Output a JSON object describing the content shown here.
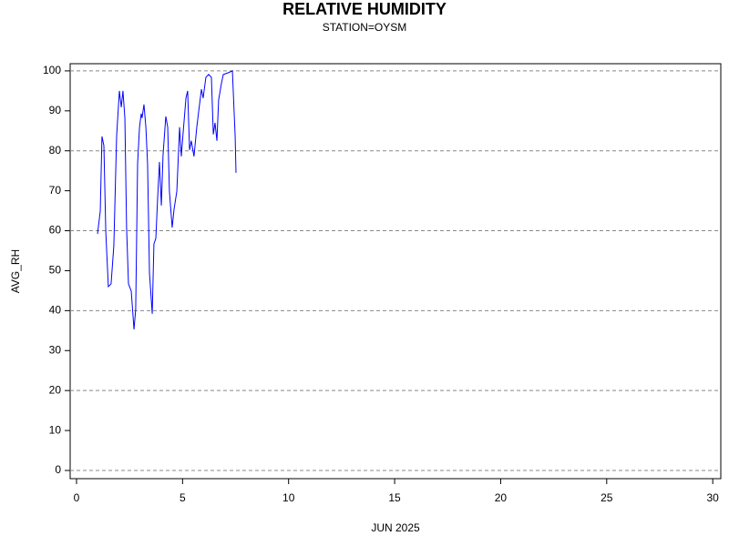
{
  "chart_data": {
    "type": "line",
    "title": "RELATIVE HUMIDITY",
    "subtitle": "STATION=OYSM",
    "y_label": "AVG_RH",
    "x_label": "JUN 2025",
    "xlim": [
      -0.3,
      30.38
    ],
    "ylim": [
      -2.05,
      101.8
    ],
    "xticks": [
      0,
      5,
      10,
      15,
      20,
      25,
      30
    ],
    "yticks": [
      0,
      10,
      20,
      30,
      40,
      50,
      60,
      70,
      80,
      90,
      100
    ],
    "ygrid": [
      0,
      20,
      40,
      60,
      80,
      100
    ],
    "series": [
      {
        "color": "#0000ff",
        "x": [
          0.99,
          1.12,
          1.2,
          1.29,
          1.38,
          1.5,
          1.63,
          1.76,
          1.89,
          2.02,
          2.11,
          2.19,
          2.28,
          2.36,
          2.45,
          2.58,
          2.71,
          2.79,
          2.88,
          2.97,
          3.05,
          3.09,
          3.18,
          3.27,
          3.35,
          3.44,
          3.57,
          3.65,
          3.74,
          3.82,
          3.91,
          4.0,
          4.08,
          4.21,
          4.3,
          4.38,
          4.51,
          4.6,
          4.73,
          4.86,
          4.94,
          5.03,
          5.16,
          5.24,
          5.33,
          5.41,
          5.54,
          5.67,
          5.8,
          5.89,
          5.97,
          6.1,
          6.23,
          6.36,
          6.45,
          6.53,
          6.62,
          6.7,
          6.83,
          6.92,
          7.13,
          7.35,
          7.48,
          7.52
        ],
        "values": [
          59.2,
          64.9,
          83.6,
          81.3,
          59.7,
          46.0,
          46.7,
          56.3,
          83.6,
          95.0,
          90.9,
          95.0,
          88.2,
          60.8,
          46.7,
          44.9,
          35.3,
          40.3,
          76.8,
          85.9,
          89.3,
          88.2,
          91.6,
          85.9,
          76.8,
          49.4,
          39.2,
          56.7,
          58.1,
          67.7,
          77.2,
          66.3,
          79.0,
          88.6,
          85.9,
          69.9,
          60.8,
          65.4,
          69.9,
          85.9,
          78.6,
          84.7,
          93.2,
          95.0,
          80.2,
          82.5,
          78.6,
          85.9,
          91.6,
          95.4,
          93.2,
          98.4,
          99.1,
          98.4,
          84.1,
          87.0,
          82.5,
          92.7,
          96.8,
          99.1,
          99.5,
          100.0,
          83.6,
          74.5
        ]
      }
    ]
  }
}
